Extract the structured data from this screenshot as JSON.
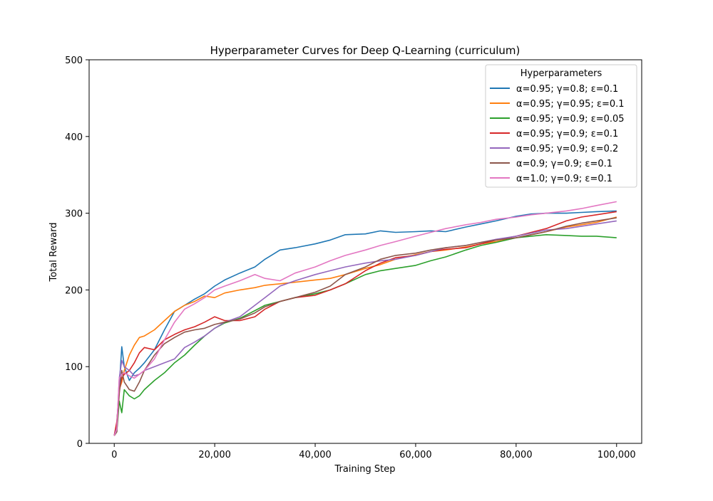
{
  "chart_data": {
    "type": "line",
    "title": "Hyperparameter Curves for Deep Q-Learning (curriculum)",
    "xlabel": "Training Step",
    "ylabel": "Total Reward",
    "xlim": [
      -5000,
      105000
    ],
    "ylim": [
      0,
      500
    ],
    "xticks": [
      0,
      20000,
      40000,
      60000,
      80000,
      100000
    ],
    "xtick_labels": [
      "0",
      "20,000",
      "40,000",
      "60,000",
      "80,000",
      "100,000"
    ],
    "yticks": [
      0,
      100,
      200,
      300,
      400,
      500
    ],
    "ytick_labels": [
      "0",
      "100",
      "200",
      "300",
      "400",
      "500"
    ],
    "grid": false,
    "legend": {
      "title": "Hyperparameters",
      "placement": "top-right"
    },
    "x": [
      0,
      500,
      1000,
      1500,
      2000,
      3000,
      4000,
      5000,
      6000,
      8000,
      10000,
      12000,
      14000,
      16000,
      18000,
      20000,
      22000,
      25000,
      28000,
      30000,
      33000,
      36000,
      40000,
      43000,
      46000,
      50000,
      53000,
      56000,
      60000,
      63000,
      66000,
      70000,
      73000,
      76000,
      80000,
      83000,
      86000,
      90000,
      93000,
      96000,
      100000
    ],
    "series": [
      {
        "name": "α=0.95; γ=0.8; ε=0.1",
        "color": "#1f77b4",
        "values": [
          10,
          25,
          75,
          126,
          100,
          82,
          92,
          98,
          105,
          122,
          148,
          172,
          180,
          188,
          195,
          205,
          213,
          222,
          230,
          240,
          252,
          255,
          260,
          265,
          272,
          273,
          277,
          275,
          276,
          277,
          276,
          282,
          286,
          290,
          296,
          299,
          300,
          300,
          301,
          302,
          303
        ]
      },
      {
        "name": "α=0.95; γ=0.95; ε=0.1",
        "color": "#ff7f0e",
        "values": [
          10,
          20,
          70,
          80,
          95,
          115,
          128,
          138,
          140,
          148,
          160,
          172,
          180,
          185,
          192,
          190,
          196,
          200,
          203,
          206,
          208,
          210,
          213,
          215,
          220,
          228,
          233,
          240,
          246,
          250,
          252,
          256,
          260,
          263,
          268,
          272,
          276,
          282,
          285,
          288,
          295
        ]
      },
      {
        "name": "α=0.95; γ=0.9; ε=0.05",
        "color": "#2ca02c",
        "values": [
          10,
          15,
          55,
          40,
          70,
          62,
          58,
          62,
          70,
          82,
          92,
          105,
          115,
          128,
          140,
          150,
          157,
          163,
          173,
          180,
          185,
          190,
          195,
          200,
          208,
          220,
          225,
          228,
          232,
          238,
          243,
          252,
          258,
          262,
          268,
          270,
          272,
          271,
          270,
          270,
          268
        ]
      },
      {
        "name": "α=0.95; γ=0.9; ε=0.1",
        "color": "#d62728",
        "values": [
          10,
          28,
          68,
          85,
          90,
          95,
          105,
          118,
          125,
          122,
          135,
          142,
          148,
          152,
          158,
          165,
          160,
          160,
          165,
          175,
          185,
          190,
          193,
          200,
          208,
          225,
          235,
          242,
          245,
          250,
          253,
          255,
          260,
          265,
          270,
          275,
          280,
          290,
          295,
          298,
          302
        ]
      },
      {
        "name": "α=0.95; γ=0.9; ε=0.2",
        "color": "#9467bd",
        "values": [
          10,
          20,
          85,
          108,
          100,
          95,
          88,
          90,
          95,
          100,
          105,
          110,
          125,
          132,
          140,
          150,
          158,
          165,
          180,
          190,
          205,
          212,
          220,
          225,
          230,
          235,
          238,
          240,
          245,
          250,
          255,
          258,
          262,
          266,
          270,
          274,
          278,
          280,
          283,
          286,
          290
        ]
      },
      {
        "name": "α=0.9; γ=0.9; ε=0.1",
        "color": "#8c564b",
        "values": [
          10,
          15,
          65,
          95,
          80,
          70,
          68,
          80,
          95,
          115,
          130,
          138,
          145,
          148,
          150,
          155,
          158,
          162,
          170,
          178,
          185,
          190,
          197,
          205,
          220,
          230,
          240,
          245,
          248,
          252,
          255,
          258,
          262,
          265,
          268,
          272,
          276,
          283,
          287,
          290,
          294
        ]
      },
      {
        "name": "α=1.0; γ=0.9; ε=0.1",
        "color": "#e377c2",
        "values": [
          10,
          18,
          85,
          90,
          92,
          88,
          85,
          90,
          95,
          110,
          135,
          158,
          175,
          182,
          190,
          200,
          205,
          212,
          220,
          215,
          212,
          222,
          230,
          238,
          245,
          252,
          258,
          263,
          270,
          275,
          280,
          285,
          288,
          292,
          295,
          298,
          300,
          303,
          306,
          310,
          315
        ]
      }
    ]
  }
}
